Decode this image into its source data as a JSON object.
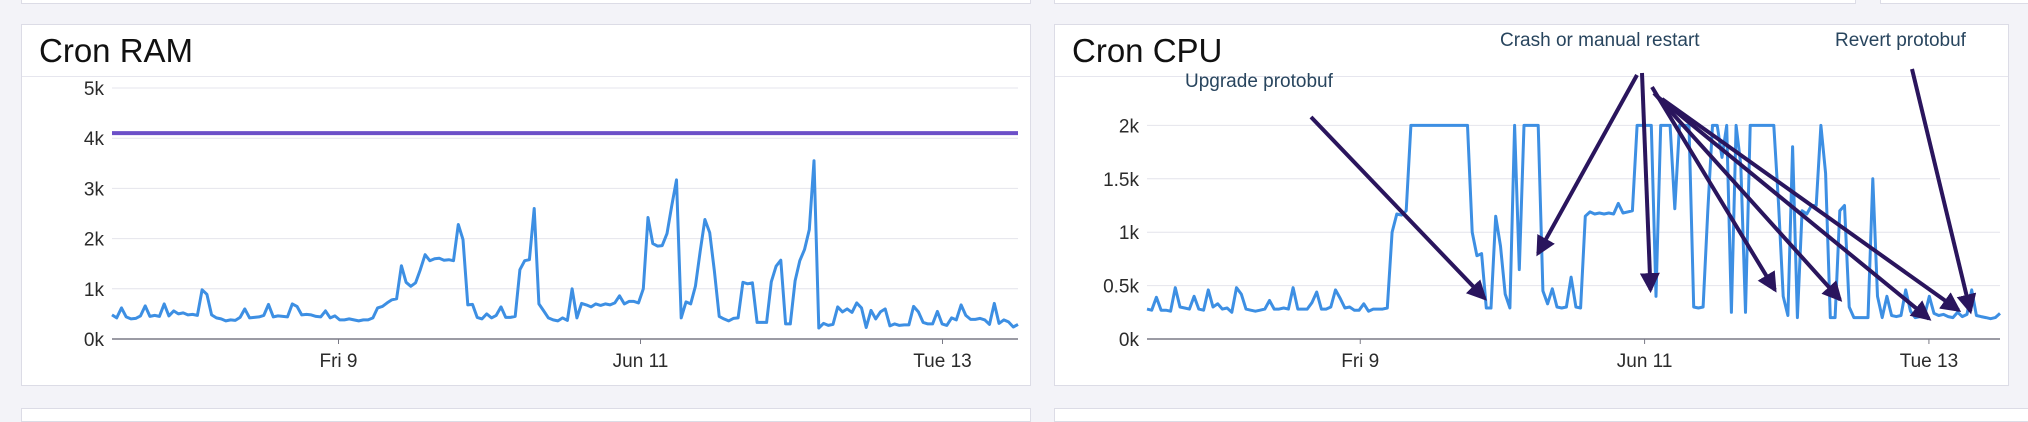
{
  "colors": {
    "background": "#f3f3f8",
    "panel": "#ffffff",
    "border": "#dcdce6",
    "series": "#3d8fe3",
    "threshold": "#6b4fc8",
    "annotation_arrow": "#2a155d",
    "annotation_text": "#28455e",
    "grid": "#e4e4ec"
  },
  "panels": {
    "ram": {
      "title": "Cron RAM"
    },
    "cpu": {
      "title": "Cron CPU"
    }
  },
  "chart_data": [
    {
      "type": "line",
      "title": "Cron RAM",
      "xlabel": "",
      "ylabel": "",
      "ylim": [
        0,
        5000
      ],
      "y_ticks": [
        0,
        1000,
        2000,
        3000,
        4000,
        5000
      ],
      "y_tick_labels": [
        "0k",
        "1k",
        "2k",
        "3k",
        "4k",
        "5k"
      ],
      "x_range_hours": [
        -36,
        108
      ],
      "x_ticks": [
        0,
        48,
        96
      ],
      "x_tick_labels": [
        "Fri 9",
        "Jun 11",
        "Tue 13"
      ],
      "grid": true,
      "threshold": 4100,
      "series": [
        {
          "values": [
            480,
            420,
            620,
            440,
            400,
            410,
            460,
            660,
            450,
            470,
            450,
            700,
            460,
            560,
            500,
            520,
            480,
            490,
            470,
            980,
            890,
            480,
            420,
            400,
            360,
            380,
            370,
            430,
            600,
            420,
            430,
            440,
            470,
            690,
            440,
            460,
            450,
            440,
            700,
            650,
            480,
            490,
            480,
            450,
            440,
            560,
            420,
            460,
            380,
            380,
            400,
            380,
            360,
            380,
            380,
            420,
            620,
            650,
            720,
            780,
            800,
            1460,
            1130,
            1050,
            1120,
            1380,
            1680,
            1560,
            1600,
            1610,
            1570,
            1580,
            1560,
            2280,
            1980,
            680,
            690,
            430,
            400,
            500,
            420,
            470,
            640,
            430,
            430,
            450,
            1380,
            1560,
            1580,
            2600,
            700,
            560,
            420,
            380,
            360,
            420,
            370,
            1000,
            420,
            710,
            680,
            640,
            700,
            670,
            700,
            680,
            720,
            860,
            700,
            750,
            750,
            720,
            1000,
            2420,
            1900,
            1850,
            1860,
            2100,
            2650,
            3170,
            420,
            740,
            700,
            1050,
            1750,
            2380,
            2120,
            1350,
            450,
            400,
            360,
            410,
            420,
            1130,
            1100,
            1120,
            330,
            330,
            330,
            1140,
            1450,
            1570,
            300,
            300,
            1160,
            1560,
            1780,
            2180,
            3550,
            220,
            310,
            270,
            290,
            640,
            540,
            600,
            530,
            720,
            620,
            230,
            570,
            400,
            540,
            600,
            260,
            300,
            270,
            280,
            280,
            650,
            540,
            330,
            300,
            300,
            550,
            300,
            270,
            420,
            380,
            680,
            470,
            390,
            390,
            410,
            380,
            290,
            710,
            310,
            380,
            340,
            240,
            290
          ]
        }
      ]
    },
    {
      "type": "line",
      "title": "Cron CPU",
      "xlabel": "",
      "ylabel": "",
      "ylim": [
        0,
        2350
      ],
      "y_ticks": [
        0,
        500,
        1000,
        1500,
        2000
      ],
      "y_tick_labels": [
        "0k",
        "0.5k",
        "1k",
        "1.5k",
        "2k"
      ],
      "x_range_hours": [
        -36,
        108
      ],
      "x_ticks": [
        0,
        48,
        96
      ],
      "x_tick_labels": [
        "Fri 9",
        "Jun 11",
        "Tue 13"
      ],
      "grid": true,
      "series": [
        {
          "values": [
            280,
            270,
            390,
            270,
            270,
            260,
            480,
            300,
            290,
            280,
            400,
            280,
            270,
            460,
            300,
            330,
            280,
            290,
            250,
            480,
            420,
            280,
            270,
            260,
            270,
            280,
            360,
            280,
            280,
            290,
            280,
            480,
            280,
            280,
            280,
            340,
            440,
            280,
            280,
            300,
            460,
            380,
            290,
            300,
            270,
            270,
            330,
            260,
            280,
            280,
            280,
            290,
            1000,
            1170,
            1160,
            1200,
            2000,
            2000,
            2000,
            2000,
            2000,
            2000,
            2000,
            2000,
            2000,
            2000,
            2000,
            2000,
            2000,
            1000,
            780,
            800,
            290,
            290,
            1150,
            870,
            420,
            290,
            2000,
            650,
            2000,
            2000,
            2000,
            2000,
            450,
            330,
            470,
            300,
            290,
            300,
            580,
            300,
            290,
            1150,
            1190,
            1170,
            1180,
            1170,
            1180,
            1170,
            1270,
            1180,
            1190,
            1200,
            2000,
            2000,
            2000,
            2000,
            400,
            2000,
            2000,
            2000,
            1220,
            2000,
            2000,
            2000,
            300,
            290,
            300,
            1200,
            2000,
            2000,
            1700,
            2000,
            250,
            2000,
            1630,
            250,
            2000,
            2000,
            2000,
            2000,
            2000,
            2000,
            1270,
            400,
            220,
            1800,
            200,
            1200,
            1170,
            1250,
            1250,
            2000,
            1550,
            200,
            200,
            1200,
            1250,
            300,
            200,
            200,
            200,
            200,
            1500,
            400,
            200,
            400,
            220,
            210,
            220,
            460,
            260,
            200,
            210,
            220,
            400,
            240,
            220,
            230,
            210,
            200,
            250,
            210,
            230,
            460,
            220,
            210,
            200,
            190,
            200,
            240
          ]
        }
      ],
      "annotations": [
        {
          "text": "Upgrade protobuf",
          "target_hour": 21,
          "target_value": 380
        },
        {
          "text": "Crash or manual restart",
          "target_hour": 30,
          "target_value": 800
        },
        {
          "text": "",
          "target_hour": 49,
          "target_value": 460
        },
        {
          "text": "",
          "target_hour": 70,
          "target_value": 460
        },
        {
          "text": "",
          "target_hour": 81,
          "target_value": 370
        },
        {
          "text": "",
          "target_hour": 96,
          "target_value": 190
        },
        {
          "text": "",
          "target_hour": 101,
          "target_value": 270
        },
        {
          "text": "Revert protobuf",
          "target_hour": 103,
          "target_value": 260
        }
      ]
    }
  ]
}
